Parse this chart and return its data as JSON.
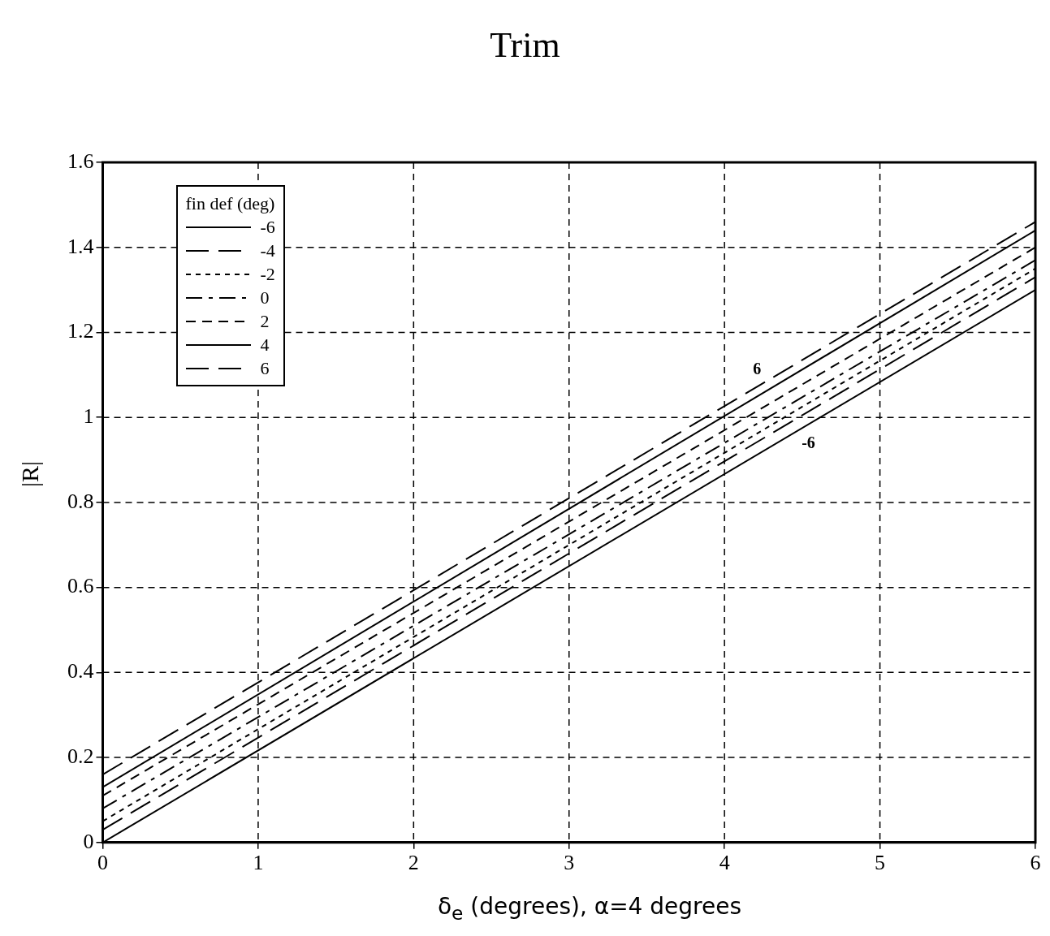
{
  "chart_data": {
    "type": "line",
    "title": "Trim",
    "xlabel": "δ$_{e}$ (degrees), α=4 degrees",
    "ylabel": "|R|",
    "legend_title": "fin def (deg)",
    "legend": "top left",
    "grid": true,
    "marker": "none",
    "x": [
      0,
      6
    ],
    "xlim": [
      0,
      6
    ],
    "xticks": [
      0,
      1,
      2,
      3,
      4,
      5,
      6
    ],
    "ylim": [
      0,
      1.6
    ],
    "yticks": [
      0,
      0.2,
      0.4,
      0.6,
      0.8,
      1,
      1.2,
      1.4,
      1.6
    ],
    "series": [
      {
        "name": "-6",
        "color": "#000000",
        "line_style": "solid",
        "values": [
          0,
          1.3
        ]
      },
      {
        "name": "-4",
        "color": "#000000",
        "line_style": "longdash",
        "values": [
          0.03,
          1.33
        ]
      },
      {
        "name": "-2",
        "color": "#000000",
        "line_style": "dotted",
        "values": [
          0.05,
          1.35
        ]
      },
      {
        "name": "0",
        "color": "#000000",
        "line_style": "dashdot",
        "values": [
          0.08,
          1.37
        ]
      },
      {
        "name": "2",
        "color": "#000000",
        "line_style": "dashed",
        "values": [
          0.11,
          1.4
        ]
      },
      {
        "name": "4",
        "color": "#000000",
        "line_style": "solid",
        "values": [
          0.13,
          1.44
        ]
      },
      {
        "name": "6",
        "color": "#000000",
        "line_style": "longdash",
        "values": [
          0.16,
          1.46
        ]
      }
    ],
    "annotations": [
      {
        "text": "-6",
        "x": 4.54,
        "y": 0.98
      },
      {
        "text": "6",
        "x": 4.21,
        "y": 1.07
      }
    ]
  }
}
